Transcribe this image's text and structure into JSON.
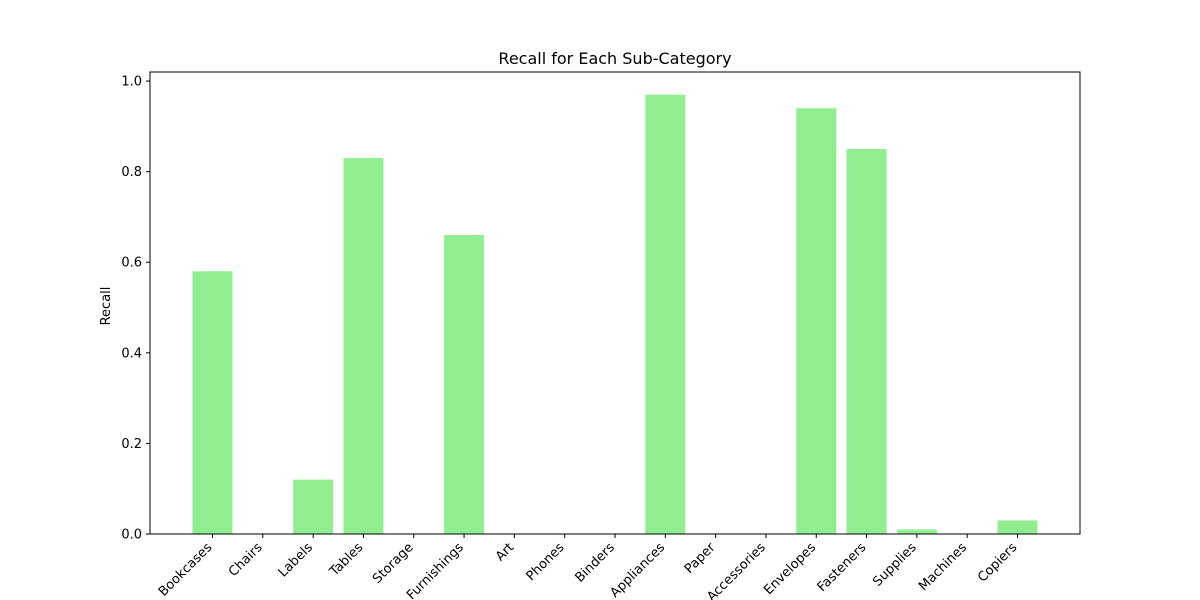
{
  "chart_data": {
    "type": "bar",
    "title": "Recall for Each Sub-Category",
    "xlabel": "",
    "ylabel": "Recall",
    "ylim": [
      0,
      1.02
    ],
    "yticks": [
      0.0,
      0.2,
      0.4,
      0.6,
      0.8,
      1.0
    ],
    "ytick_labels": [
      "0.0",
      "0.2",
      "0.4",
      "0.6",
      "0.8",
      "1.0"
    ],
    "grid": false,
    "bar_color": "#90ee90",
    "categories": [
      "Bookcases",
      "Chairs",
      "Labels",
      "Tables",
      "Storage",
      "Furnishings",
      "Art",
      "Phones",
      "Binders",
      "Appliances",
      "Paper",
      "Accessories",
      "Envelopes",
      "Fasteners",
      "Supplies",
      "Machines",
      "Copiers"
    ],
    "values": [
      0.58,
      0.0,
      0.12,
      0.83,
      0.0,
      0.66,
      0.0,
      0.0,
      0.0,
      0.97,
      0.0,
      0.0,
      0.94,
      0.85,
      0.01,
      0.0,
      0.03
    ]
  }
}
